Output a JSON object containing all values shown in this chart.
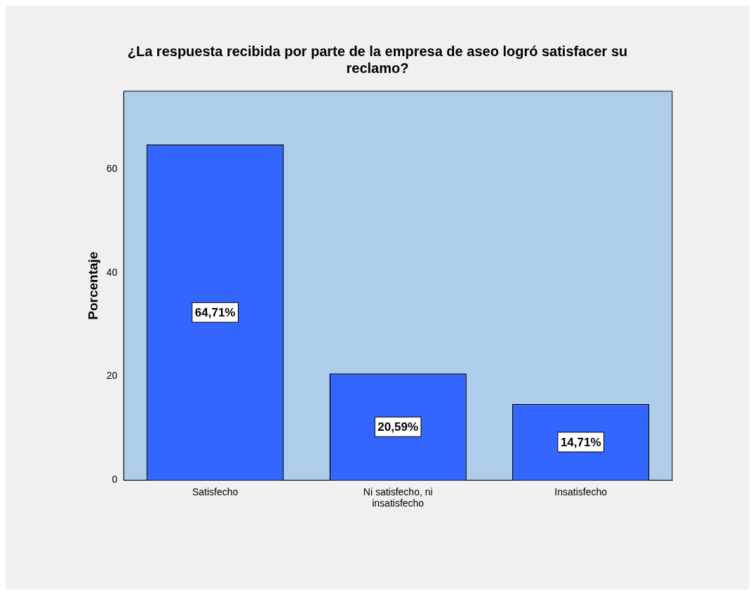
{
  "chart_data": {
    "type": "bar",
    "title": "¿La respuesta recibida por parte de la empresa de aseo logró satisfacer su reclamo?",
    "ylabel": "Porcentaje",
    "categories": [
      "Satisfecho",
      "Ni satisfecho, ni insatisfecho",
      "Insatisfecho"
    ],
    "values": [
      64.71,
      20.59,
      14.71
    ],
    "value_labels": [
      "64,71%",
      "20,59%",
      "14,71%"
    ],
    "color": "#3366ff",
    "ylim": [
      0,
      75
    ],
    "yticks": [
      0,
      20,
      40,
      60
    ],
    "grid": false,
    "legend": false
  }
}
